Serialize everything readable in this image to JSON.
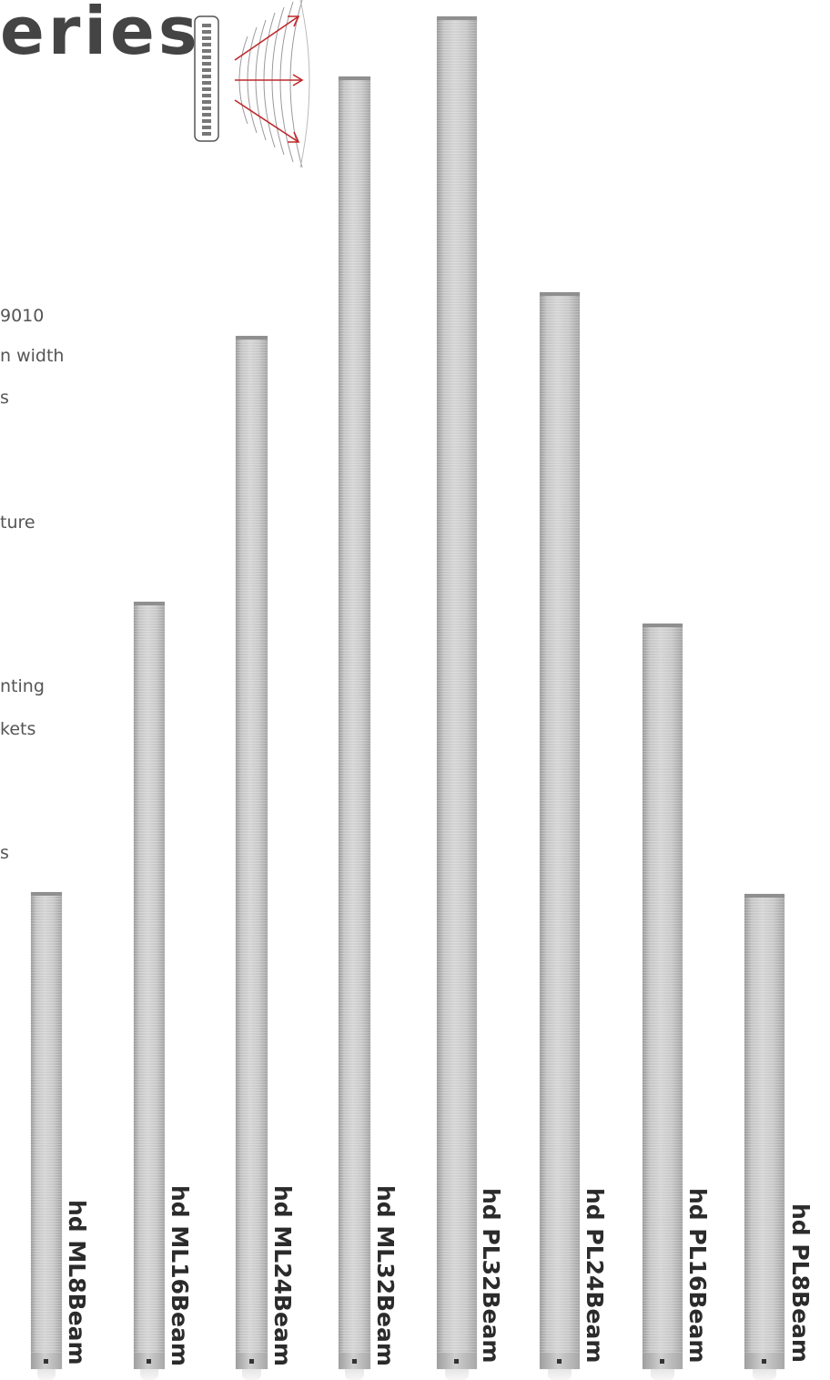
{
  "header": {
    "title_fragment": "eries",
    "icon": "beam-steering-icon"
  },
  "features": [
    "9010",
    "n width",
    "s",
    "ture",
    "nting",
    "kets",
    "s"
  ],
  "products": [
    {
      "label": "hd ML8Beam"
    },
    {
      "label": "hd ML16Beam"
    },
    {
      "label": "hd ML24Beam"
    },
    {
      "label": "hd ML32Beam"
    },
    {
      "label": "hd PL32Beam"
    },
    {
      "label": "hd PL24Beam"
    },
    {
      "label": "hd PL16Beam"
    },
    {
      "label": "hd PL8Beam"
    }
  ],
  "colors": {
    "title": "#444444",
    "arrows": "#c0282b",
    "speaker_body": "#c8c8c8",
    "label": "#2b2b2b"
  }
}
